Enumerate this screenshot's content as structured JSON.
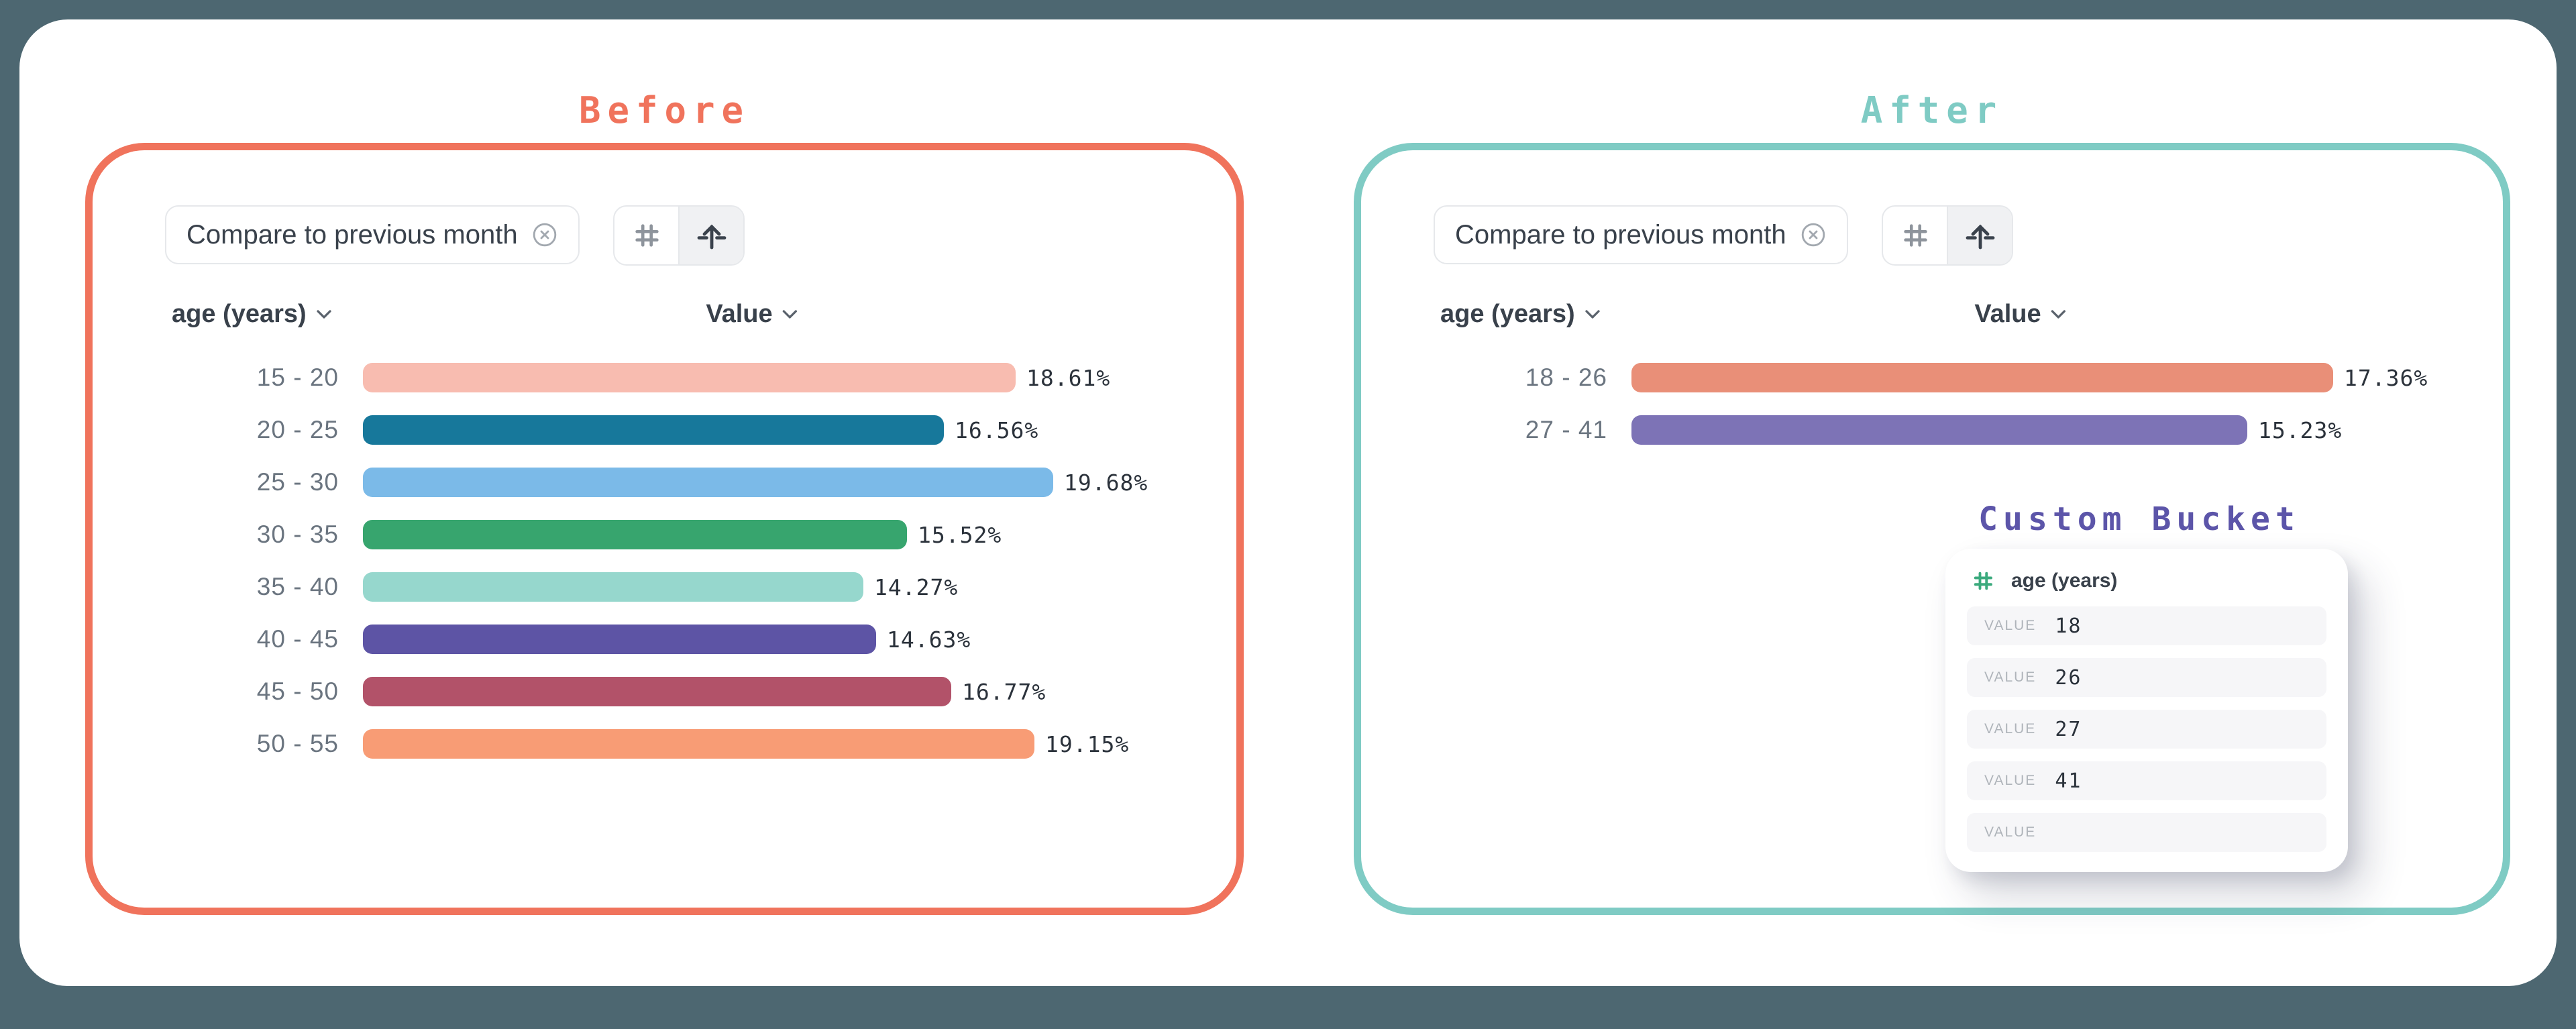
{
  "theme": {
    "page_bg": "#4D6771",
    "card_bg": "#FFFFFF",
    "before_accent": "#F0735C",
    "after_accent": "#7FCBC4",
    "bucket_accent": "#5C55A9",
    "chip_border": "#E6E8EB",
    "seg_selected_bg": "#F0F1F3",
    "icon_gray": "#8E949C",
    "icon_dark": "#3A424C",
    "text_dark": "#39414B",
    "text_gray": "#6B7580",
    "value_text": "#2B323B",
    "bucket_row_bg": "#F6F6F8",
    "bucket_key_text": "#AFB4BA",
    "hash_green": "#3BAA7D"
  },
  "panels": {
    "before": {
      "title": "Before",
      "chip": {
        "label": "Compare to previous month"
      },
      "columns": {
        "dimension": "age (years)",
        "measure": "Value"
      },
      "rows": [
        {
          "label": "15 - 20",
          "value": 18.61,
          "display": "18.61%",
          "color": "#F8BCB0"
        },
        {
          "label": "20 - 25",
          "value": 16.56,
          "display": "16.56%",
          "color": "#17789B"
        },
        {
          "label": "25 - 30",
          "value": 19.68,
          "display": "19.68%",
          "color": "#7BBAE8"
        },
        {
          "label": "30 - 35",
          "value": 15.52,
          "display": "15.52%",
          "color": "#37A56E"
        },
        {
          "label": "35 - 40",
          "value": 14.27,
          "display": "14.27%",
          "color": "#96D7CD"
        },
        {
          "label": "40 - 45",
          "value": 14.63,
          "display": "14.63%",
          "color": "#5D54A5"
        },
        {
          "label": "45 - 50",
          "value": 16.77,
          "display": "16.77%",
          "color": "#B25269"
        },
        {
          "label": "50 - 55",
          "value": 19.15,
          "display": "19.15%",
          "color": "#F89C75"
        }
      ]
    },
    "after": {
      "title": "After",
      "chip": {
        "label": "Compare to previous month"
      },
      "columns": {
        "dimension": "age (years)",
        "measure": "Value"
      },
      "rows": [
        {
          "label": "18 - 26",
          "value": 17.36,
          "display": "17.36%",
          "color": "#E98F78"
        },
        {
          "label": "27 - 41",
          "value": 15.23,
          "display": "15.23%",
          "color": "#7D73B6"
        }
      ],
      "custom_bucket": {
        "title": "Custom Bucket",
        "field": "age (years)",
        "value_label": "VALUE",
        "values": [
          "18",
          "26",
          "27",
          "41",
          ""
        ]
      }
    }
  },
  "chart_data": [
    {
      "type": "bar",
      "orientation": "horizontal",
      "title": "Before",
      "xlabel": "Value",
      "ylabel": "age (years)",
      "categories": [
        "15 - 20",
        "20 - 25",
        "25 - 30",
        "30 - 35",
        "35 - 40",
        "40 - 45",
        "45 - 50",
        "50 - 55"
      ],
      "values": [
        18.61,
        16.56,
        19.68,
        15.52,
        14.27,
        14.63,
        16.77,
        19.15
      ],
      "value_suffix": "%",
      "colors": [
        "#F8BCB0",
        "#17789B",
        "#7BBAE8",
        "#37A56E",
        "#96D7CD",
        "#5D54A5",
        "#B25269",
        "#F89C75"
      ]
    },
    {
      "type": "bar",
      "orientation": "horizontal",
      "title": "After",
      "xlabel": "Value",
      "ylabel": "age (years)",
      "categories": [
        "18 - 26",
        "27 - 41"
      ],
      "values": [
        17.36,
        15.23
      ],
      "value_suffix": "%",
      "colors": [
        "#E98F78",
        "#7D73B6"
      ]
    }
  ]
}
